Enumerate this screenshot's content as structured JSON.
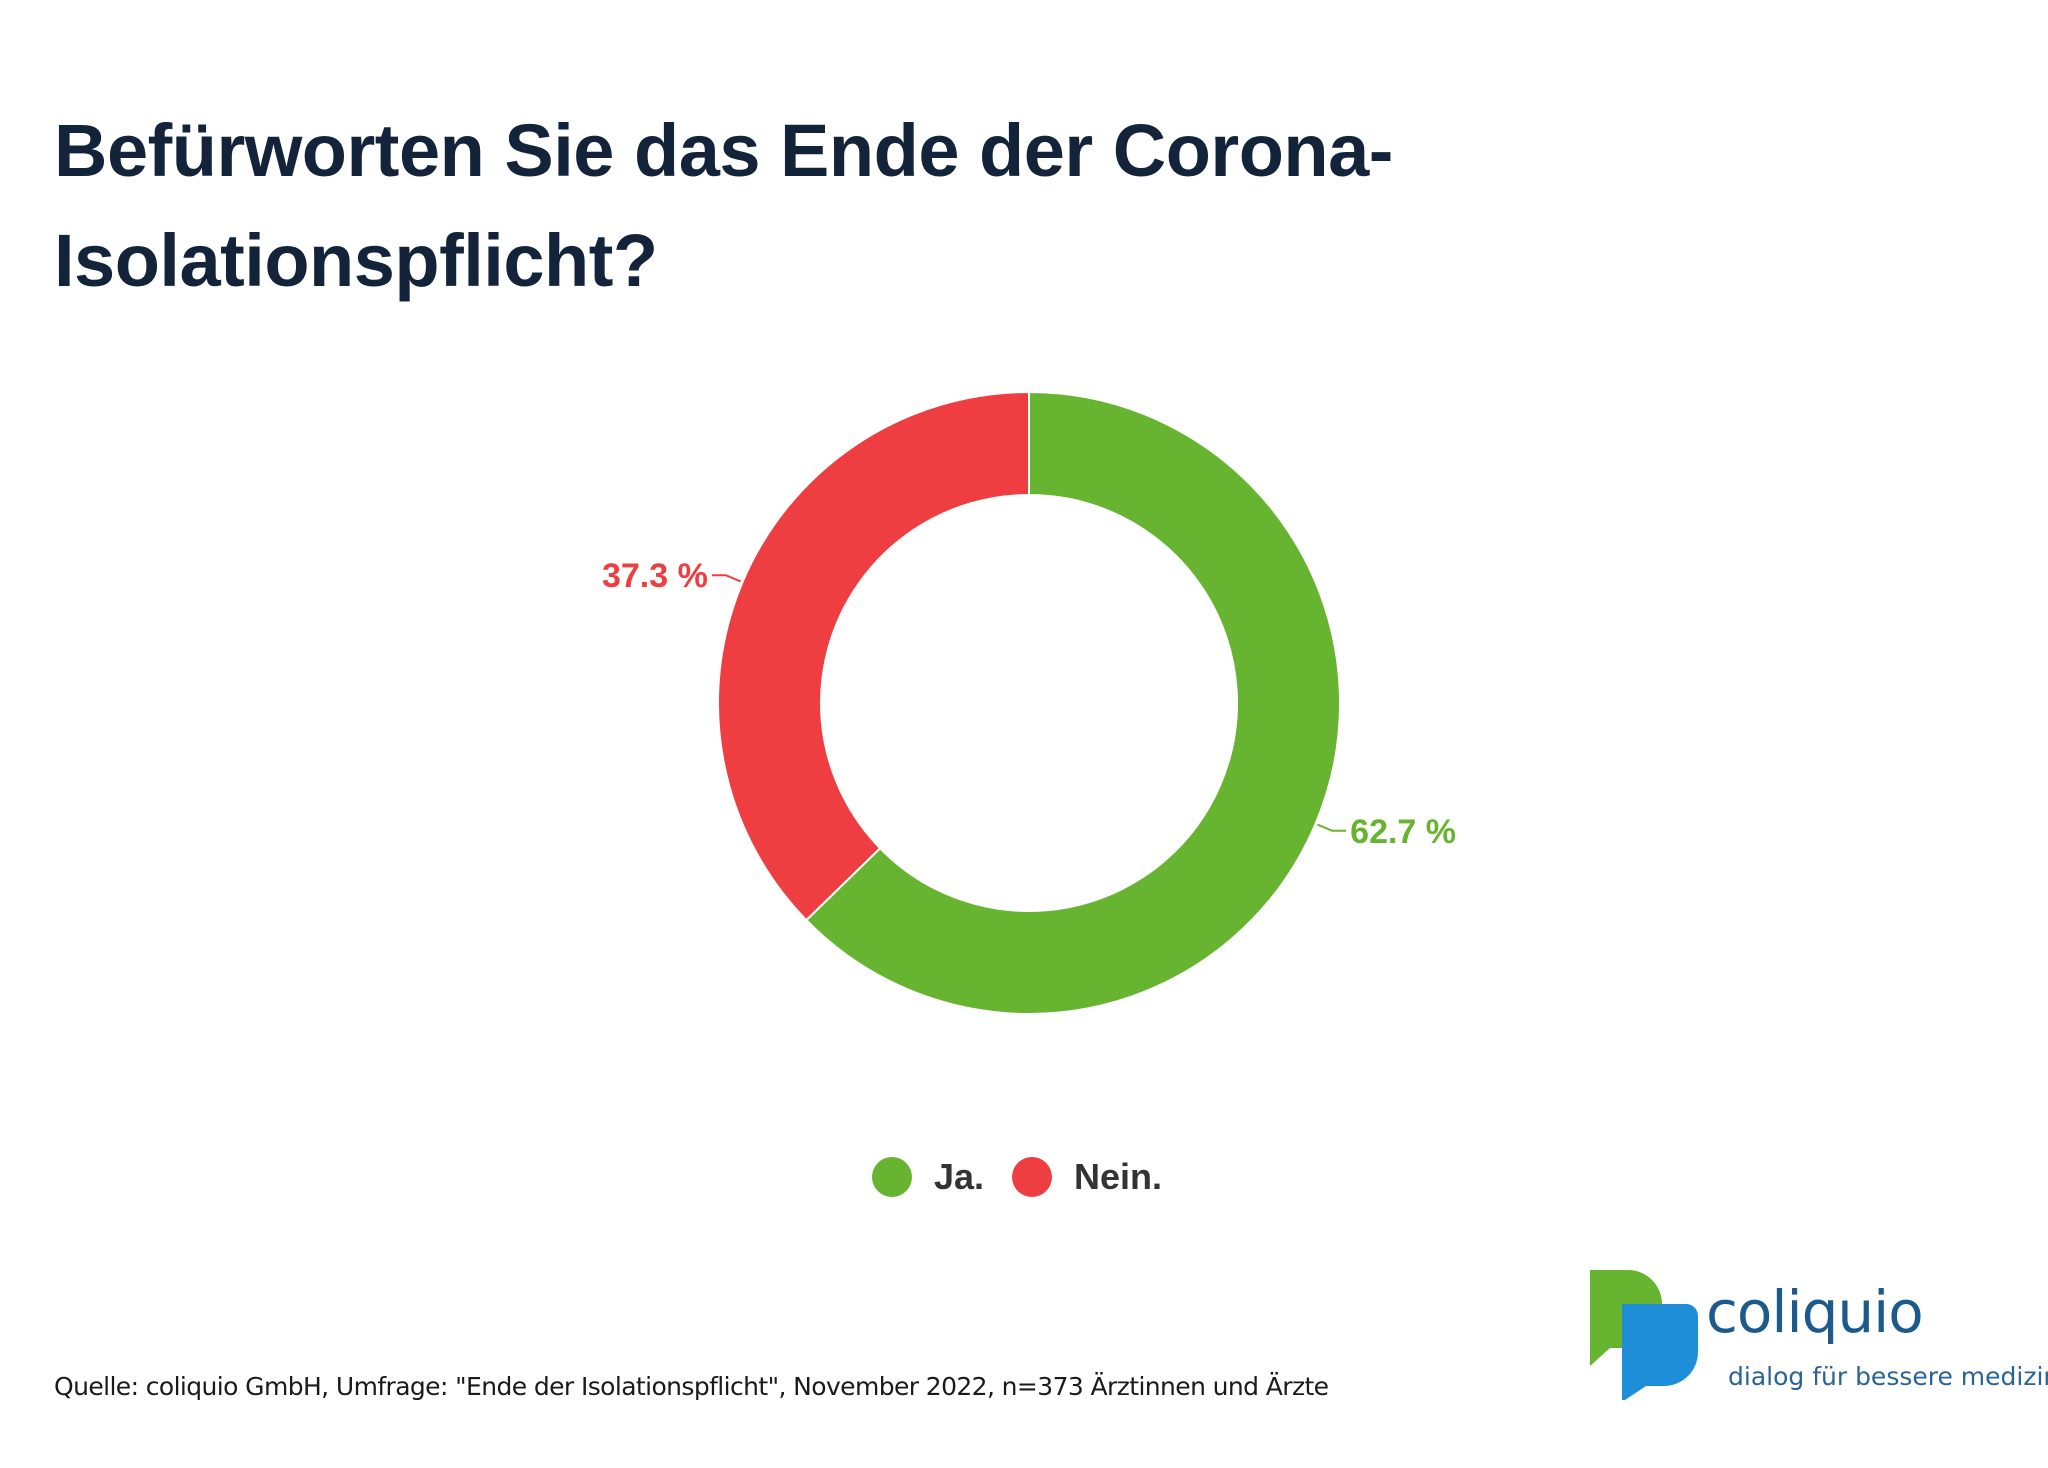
{
  "title_lines": [
    "Befürworten Sie das Ende der Corona-",
    "Isolationspflicht?"
  ],
  "chart_data": {
    "type": "pie",
    "variant": "donut",
    "categories": [
      "Ja.",
      "Nein."
    ],
    "values": [
      62.7,
      37.3
    ],
    "data_labels": [
      "62.7 %",
      "37.3 %"
    ],
    "colors": [
      "#67b430",
      "#ef3e42"
    ],
    "legend_position": "bottom-center",
    "start_angle_degrees": 0,
    "direction": "clockwise"
  },
  "source": "Quelle: coliquio GmbH, Umfrage: \"Ende der Isolationspflicht\", November 2022, n=373 Ärztinnen und Ärzte",
  "logo": {
    "name": "coliquio",
    "tagline": "dialog für bessere medizin",
    "colors": {
      "green": "#67b430",
      "blue": "#1e8ed8",
      "text": "#1d5a8c"
    }
  }
}
